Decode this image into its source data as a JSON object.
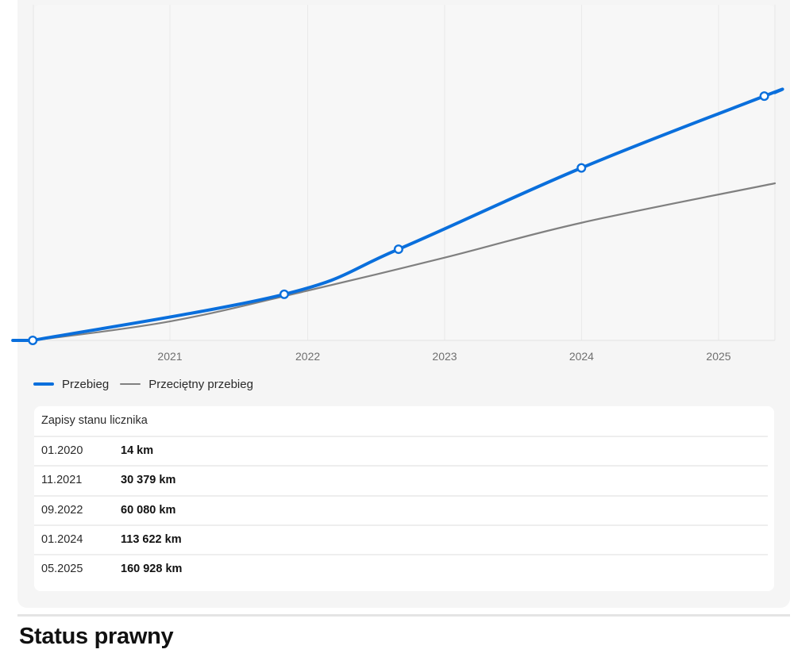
{
  "chart_data": {
    "type": "line",
    "x_ticks": [
      "2021",
      "2022",
      "2023",
      "2024",
      "2025"
    ],
    "series": [
      {
        "name": "Przebieg",
        "color": "#0a6fdc",
        "points": [
          {
            "date": "01.2020",
            "value": 14
          },
          {
            "date": "11.2021",
            "value": 30379
          },
          {
            "date": "09.2022",
            "value": 60080
          },
          {
            "date": "01.2024",
            "value": 113622
          },
          {
            "date": "05.2025",
            "value": 160928
          }
        ]
      },
      {
        "name": "Przeciętny przebieg",
        "color": "#808080"
      }
    ],
    "grid": "vertical"
  },
  "legend": {
    "main_label": "Przebieg",
    "avg_label": "Przeciętny przebieg"
  },
  "table": {
    "title": "Zapisy stanu licznika",
    "rows": [
      {
        "date": "01.2020",
        "km": "14 km"
      },
      {
        "date": "11.2021",
        "km": "30 379 km"
      },
      {
        "date": "09.2022",
        "km": "60 080 km"
      },
      {
        "date": "01.2024",
        "km": "113 622 km"
      },
      {
        "date": "05.2025",
        "km": "160 928 km"
      }
    ]
  },
  "next_section": {
    "title": "Status prawny"
  }
}
